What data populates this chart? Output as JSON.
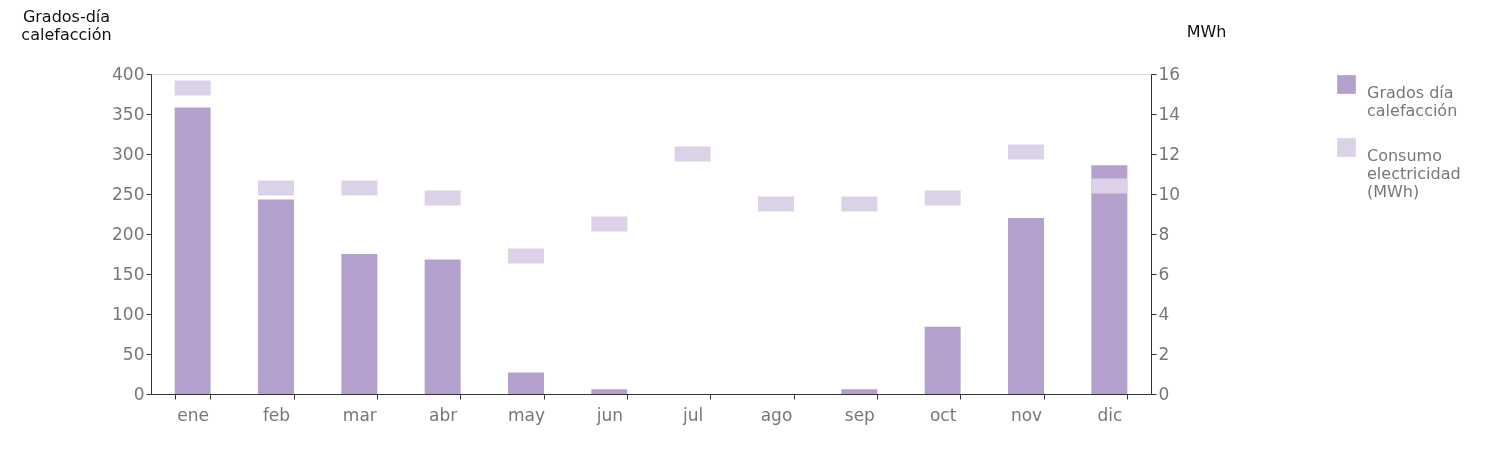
{
  "chart_data": {
    "type": "bar",
    "ylabel": "Grados-día\ncalefacción",
    "y2label": "MWh",
    "categories": [
      "ene",
      "feb",
      "mar",
      "abr",
      "may",
      "jun",
      "jul",
      "ago",
      "sep",
      "oct",
      "nov",
      "dic"
    ],
    "series": [
      {
        "name": "Grados día\ncalefacción",
        "color": "#b4a0cc",
        "values": [
          358,
          243,
          175,
          168,
          27,
          6,
          0,
          0,
          6,
          84,
          220,
          286
        ]
      },
      {
        "name": "Consumo\nelectricidad\n(MWh)",
        "type": "scatter",
        "marker": "square",
        "axis": "y2",
        "color": "#dcd2e8",
        "values": [
          15.3,
          10.3,
          10.3,
          9.8,
          6.9,
          8.5,
          12.0,
          9.5,
          9.5,
          9.8,
          12.1,
          10.4
        ]
      }
    ],
    "ylim": [
      0,
      400
    ],
    "yticks": [
      0,
      50,
      100,
      150,
      200,
      250,
      300,
      350,
      400
    ],
    "y2lim": [
      0,
      16
    ],
    "y2ticks": [
      0,
      2,
      4,
      6,
      8,
      10,
      12,
      14,
      16
    ],
    "grid": false,
    "legend": "right"
  }
}
